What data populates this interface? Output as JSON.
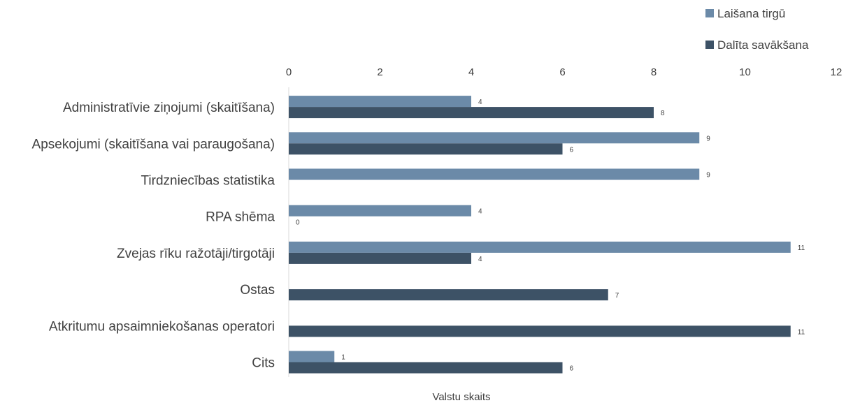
{
  "chart_data": {
    "type": "bar",
    "orientation": "horizontal",
    "categories": [
      "Administratīvie ziņojumi (skaitīšana)",
      "Apsekojumi (skaitīšana vai paraugošana)",
      "Tirdzniecības statistika",
      "RPA shēma",
      "Zvejas rīku ražotāji/tirgotāji",
      "Ostas",
      "Atkritumu apsaimniekošanas operatori",
      "Cits"
    ],
    "series": [
      {
        "name": "Laišana tirgū",
        "color": "#6b8aa8",
        "values": [
          4,
          9,
          9,
          4,
          11,
          null,
          null,
          1
        ]
      },
      {
        "name": "Dalīta savākšana",
        "color": "#3d5266",
        "values": [
          8,
          6,
          null,
          0,
          4,
          7,
          11,
          6
        ]
      }
    ],
    "xlabel": "Valstu skaits",
    "ylabel": "",
    "xlim": [
      0,
      12
    ],
    "xticks": [
      0,
      2,
      4,
      6,
      8,
      10,
      12
    ],
    "axis_position": "top",
    "legend_position": "top-right",
    "grid": false
  }
}
